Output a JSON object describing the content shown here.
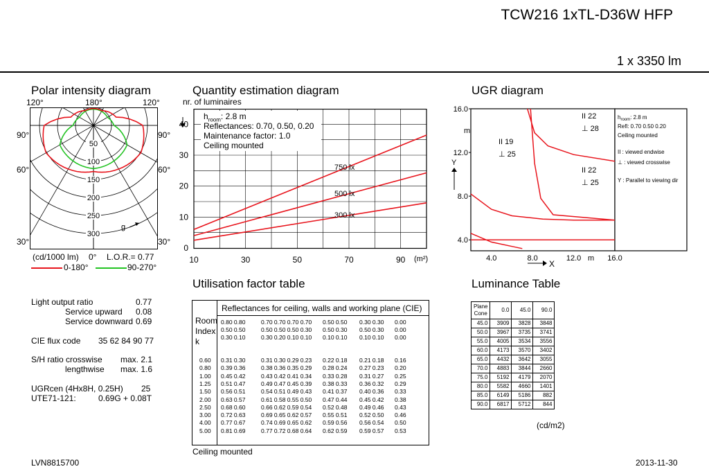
{
  "header": {
    "product": "TCW216 1xTL-D36W HFP",
    "lumen": "1 x 3350 lm"
  },
  "footer": {
    "code": "LVN8815700",
    "date": "2013-11-30"
  },
  "polar": {
    "title": "Polar intensity diagram",
    "angles_top": [
      "120°",
      "180°",
      "120°"
    ],
    "angles_side": [
      "90°",
      "90°",
      "60°",
      "60°",
      "30°",
      "30°"
    ],
    "bottom_angle": "0°",
    "rings": [
      "50",
      "100",
      "150",
      "200",
      "250",
      "300"
    ],
    "g_label": "g",
    "unit": "(cd/1000 lm)",
    "lor": "L.O.R.= 0.77",
    "legend_red": "0-180°",
    "legend_green": "90-270°",
    "colors": {
      "red": "#e8141c",
      "green": "#22c322"
    }
  },
  "qed": {
    "title": "Quantity estimation diagram",
    "ylabel": "nr. of luminaires",
    "yticks": [
      "0",
      "10",
      "20",
      "30",
      "40"
    ],
    "xticks": [
      "10",
      "30",
      "50",
      "70",
      "90"
    ],
    "xunit": "(m²)",
    "info": [
      "h",
      "room",
      ": 2.8 m",
      "Reflectances: 0.70, 0.50, 0.20",
      "Maintenance factor: 1.0",
      "Ceiling mounted"
    ],
    "lines": [
      {
        "label": "750 lx",
        "x": [
          10,
          100
        ],
        "y": [
          6,
          36.5
        ]
      },
      {
        "label": "500 lx",
        "x": [
          10,
          100
        ],
        "y": [
          4,
          24.3
        ]
      },
      {
        "label": "300 lx",
        "x": [
          10,
          100
        ],
        "y": [
          2.5,
          14.6
        ]
      }
    ]
  },
  "ugr": {
    "title": "UGR diagram",
    "yticks": [
      "4.0",
      "8.0",
      "12.0",
      "16.0"
    ],
    "xticks": [
      "4.0",
      "8.0",
      "12.0",
      "16.0"
    ],
    "ylabel": "Y",
    "yunit": "m",
    "xlabel": "X",
    "xunit": "m",
    "marks": [
      {
        "end": "22",
        "cross": "28"
      },
      {
        "end": "19",
        "cross": "25"
      },
      {
        "end": "22",
        "cross": "25"
      }
    ],
    "notes": [
      "h",
      "room",
      ": 2.8 m",
      "Refl: 0.70 0.50 0.20",
      "Ceiling mounted",
      ": viewed endwise",
      ": viewed crosswise",
      "Y   : Parallel to viewing dir"
    ]
  },
  "summary": {
    "rows": [
      {
        "label": "Light output ratio",
        "value": "0.77"
      },
      {
        "label": "Service upward",
        "value": "0.08"
      },
      {
        "label": "Service downward",
        "value": "0.69"
      },
      {
        "label": "CIE flux code",
        "value": "35 62 84 90 77"
      },
      {
        "label": "S/H ratio crosswise",
        "value": "max. 2.1"
      },
      {
        "label": "lengthwise",
        "value": "max. 1.6"
      },
      {
        "label": "UGRcen (4Hx8H, 0.25H)",
        "value": "25"
      },
      {
        "label": "UTE71-121:",
        "value": "0.69G + 0.08T"
      }
    ]
  },
  "utilisation": {
    "title": "Utilisation factor table",
    "header": "Reflectances for ceiling, walls and working plane (CIE)",
    "room_index": "Room Index k",
    "footer": "Ceiling mounted",
    "refl_ceiling": [
      "0.80 0.80",
      "0.70 0.70 0.70 0.70",
      "0.50 0.50",
      "0.30 0.30",
      "0.00"
    ],
    "refl_walls": [
      "0.50 0.50",
      "0.50 0.50 0.50 0.30",
      "0.50 0.30",
      "0.50 0.30",
      "0.00"
    ],
    "refl_plane": [
      "0.30 0.10",
      "0.30 0.20 0.10 0.10",
      "0.10 0.10",
      "0.10 0.10",
      "0.00"
    ],
    "rows": [
      [
        "0.60",
        "0.31 0.30",
        "0.31 0.30 0.29 0.23",
        "0.22 0.18",
        "0.21 0.18",
        "0.16"
      ],
      [
        "0.80",
        "0.39 0.36",
        "0.38 0.36 0.35 0.29",
        "0.28 0.24",
        "0.27 0.23",
        "0.20"
      ],
      [
        "1.00",
        "0.45 0.42",
        "0.43 0.42 0.41 0.34",
        "0.33 0.28",
        "0.31 0.27",
        "0.25"
      ],
      [
        "1.25",
        "0.51 0.47",
        "0.49 0.47 0.45 0.39",
        "0.38 0.33",
        "0.36 0.32",
        "0.29"
      ],
      [
        "1.50",
        "0.56 0.51",
        "0.54 0.51 0.49 0.43",
        "0.41 0.37",
        "0.40 0.36",
        "0.33"
      ],
      [
        "2.00",
        "0.63 0.57",
        "0.61 0.58 0.55 0.50",
        "0.47 0.44",
        "0.45 0.42",
        "0.38"
      ],
      [
        "2.50",
        "0.68 0.60",
        "0.66 0.62 0.59 0.54",
        "0.52 0.48",
        "0.49 0.46",
        "0.43"
      ],
      [
        "3.00",
        "0.72 0.63",
        "0.69 0.65 0.62 0.57",
        "0.55 0.51",
        "0.52 0.50",
        "0.46"
      ],
      [
        "4.00",
        "0.77 0.67",
        "0.74 0.69 0.65 0.62",
        "0.59 0.56",
        "0.56 0.54",
        "0.50"
      ],
      [
        "5.00",
        "0.81 0.69",
        "0.77 0.72 0.68 0.64",
        "0.62 0.59",
        "0.59 0.57",
        "0.53"
      ]
    ]
  },
  "luminance": {
    "title": "Luminance Table",
    "head": [
      "Plane",
      "Cone",
      "0.0",
      "45.0",
      "90.0"
    ],
    "unit": "(cd/m2)",
    "rows": [
      [
        "45.0",
        "3909",
        "3828",
        "3848"
      ],
      [
        "50.0",
        "3967",
        "3735",
        "3741"
      ],
      [
        "55.0",
        "4005",
        "3534",
        "3556"
      ],
      [
        "60.0",
        "4173",
        "3570",
        "3402"
      ],
      [
        "65.0",
        "4432",
        "3642",
        "3055"
      ],
      [
        "70.0",
        "4883",
        "3844",
        "2660"
      ],
      [
        "75.0",
        "5192",
        "4179",
        "2070"
      ],
      [
        "80.0",
        "5582",
        "4660",
        "1401"
      ],
      [
        "85.0",
        "6149",
        "5186",
        "882"
      ],
      [
        "90.0",
        "6817",
        "5712",
        "844"
      ]
    ]
  },
  "chart_data": [
    {
      "type": "line",
      "title": "Quantity estimation diagram",
      "xlabel": "(m²)",
      "ylabel": "nr. of luminaires",
      "xlim": [
        10,
        100
      ],
      "ylim": [
        0,
        45
      ],
      "series": [
        {
          "name": "750 lx",
          "x": [
            10,
            100
          ],
          "y": [
            6,
            36.5
          ]
        },
        {
          "name": "500 lx",
          "x": [
            10,
            100
          ],
          "y": [
            4,
            24.3
          ]
        },
        {
          "name": "300 lx",
          "x": [
            10,
            100
          ],
          "y": [
            2.5,
            14.6
          ]
        }
      ]
    },
    {
      "type": "line",
      "title": "UGR diagram",
      "xlabel": "X",
      "ylabel": "Y",
      "xlim": [
        2,
        16
      ],
      "ylim": [
        3,
        16
      ],
      "series": [
        {
          "x": [
            7.5,
            8.2,
            9.5,
            12,
            16
          ],
          "y": [
            16,
            13.8,
            12.6,
            11.8,
            11.2
          ]
        },
        {
          "x": [
            7.8,
            8.2,
            8.8,
            10,
            16
          ],
          "y": [
            16,
            11,
            7.8,
            6.3,
            5.8
          ]
        },
        {
          "x": [
            2,
            4,
            6,
            9,
            12,
            16
          ],
          "y": [
            8.2,
            6.8,
            6.2,
            5.9,
            5.8,
            5.8
          ]
        },
        {
          "x": [
            2,
            16
          ],
          "y": [
            4,
            4
          ]
        },
        {
          "x": [
            2,
            4,
            6,
            7
          ],
          "y": [
            4.6,
            3.8,
            3.4,
            3.2
          ]
        }
      ]
    }
  ]
}
